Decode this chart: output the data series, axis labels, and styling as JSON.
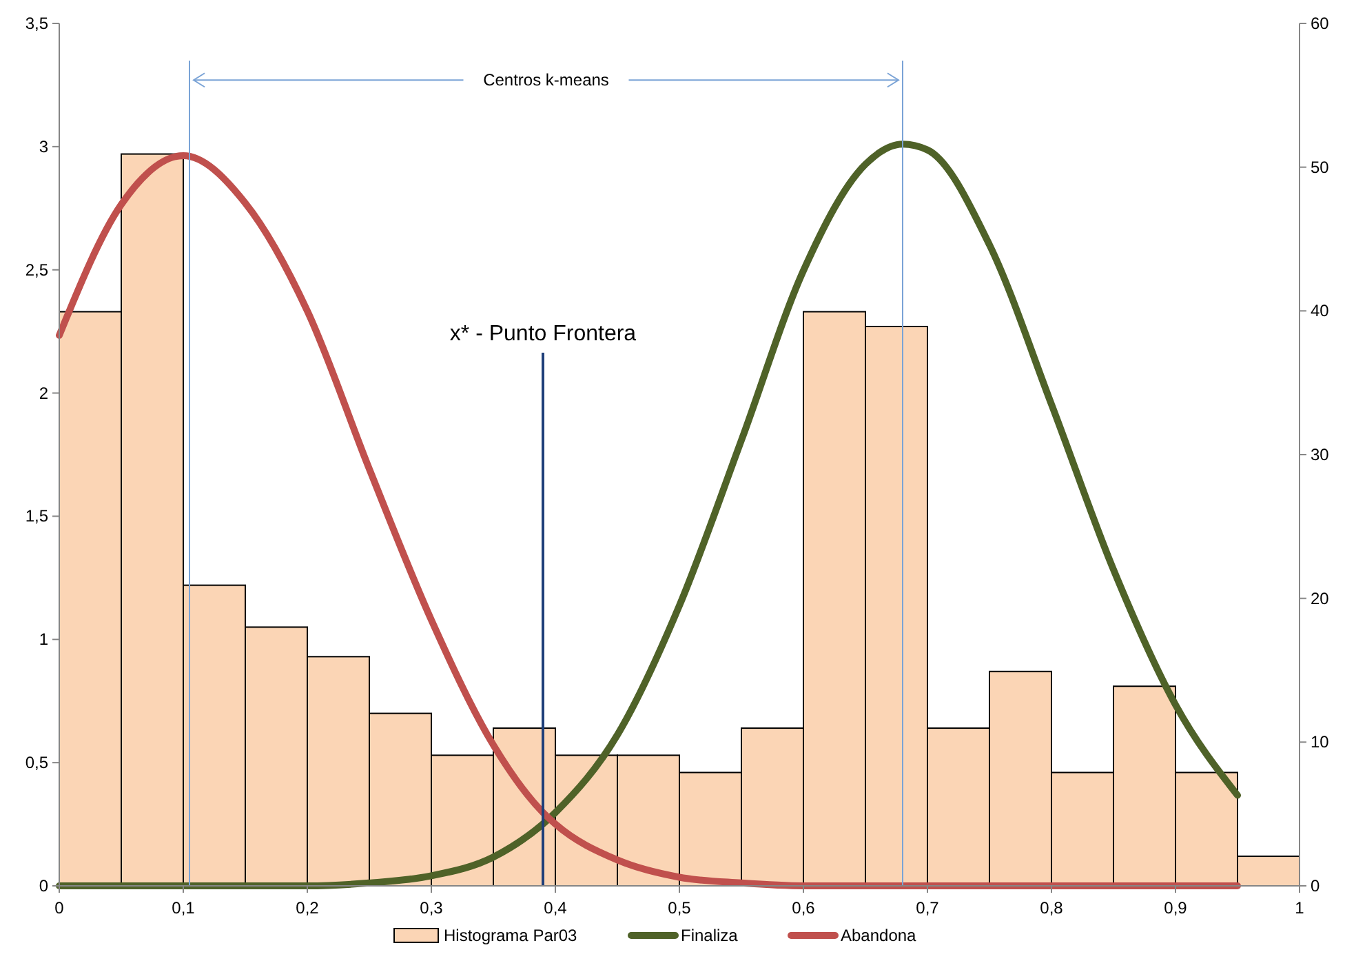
{
  "chart_data": {
    "type": "histogram",
    "bins": [
      0,
      0.05,
      0.1,
      0.15,
      0.2,
      0.25,
      0.3,
      0.35,
      0.4,
      0.45,
      0.5,
      0.55,
      0.6,
      0.65,
      0.7,
      0.75,
      0.8,
      0.85,
      0.9,
      0.95,
      1
    ],
    "series": [
      {
        "name": "Histograma Par03",
        "color": "#fbd5b5",
        "values": [
          2.33,
          2.97,
          1.22,
          1.05,
          0.93,
          0.7,
          0.53,
          0.64,
          0.53,
          0.53,
          0.46,
          0.64,
          2.33,
          2.27,
          0.64,
          0.87,
          0.46,
          0.81,
          0.46,
          0.12
        ]
      },
      {
        "type": "line",
        "name": "Finaliza",
        "color": "#4f6228",
        "axis": "y2",
        "x": [
          0,
          0.1,
          0.2,
          0.25,
          0.3,
          0.35,
          0.4,
          0.45,
          0.5,
          0.55,
          0.6,
          0.65,
          0.68,
          0.7,
          0.75,
          0.8,
          0.85,
          0.9,
          0.95
        ],
        "values": [
          0,
          0,
          0,
          0.2,
          0.7,
          2,
          5.1,
          10.5,
          19.5,
          31,
          42.8,
          50.2,
          51.6,
          51.2,
          44.6,
          33.5,
          22,
          12.6,
          6.3
        ]
      },
      {
        "type": "line",
        "name": "Abandona",
        "color": "#c0504d",
        "axis": "y2",
        "x": [
          0,
          0.05,
          0.1,
          0.15,
          0.2,
          0.25,
          0.3,
          0.35,
          0.39,
          0.4,
          0.45,
          0.5,
          0.55,
          0.6,
          0.7,
          0.8,
          0.9,
          0.95
        ],
        "values": [
          38.3,
          47.4,
          50.8,
          47.5,
          40,
          29,
          18.5,
          9.8,
          5.1,
          4.3,
          1.8,
          0.6,
          0.2,
          0,
          0,
          0,
          0,
          0
        ]
      }
    ],
    "xlim": [
      0,
      1
    ],
    "xticks": [
      0,
      {
        "value": 0.1,
        "label": "0,1"
      },
      {
        "value": 0.2,
        "label": "0,2"
      },
      {
        "value": 0.3,
        "label": "0,3"
      },
      {
        "value": 0.4,
        "label": "0,4"
      },
      {
        "value": 0.5,
        "label": "0,5"
      },
      {
        "value": 0.6,
        "label": "0,6"
      },
      {
        "value": 0.7,
        "label": "0,7"
      },
      {
        "value": 0.8,
        "label": "0,8"
      },
      {
        "value": 0.9,
        "label": "0,9"
      },
      1
    ],
    "ylim": [
      0,
      3.5
    ],
    "yticks": [
      0,
      {
        "value": 0.5,
        "label": "0,5"
      },
      1,
      {
        "value": 1.5,
        "label": "1,5"
      },
      2,
      {
        "value": 2.5,
        "label": "2,5"
      },
      3,
      {
        "value": 3.5,
        "label": "3,5"
      }
    ],
    "y2lim": [
      0,
      60
    ],
    "y2ticks": [
      0,
      10,
      20,
      30,
      40,
      50,
      60
    ],
    "ref_lines": [
      {
        "axis": "x",
        "value": 0.105,
        "color": "#7aa3d6"
      },
      {
        "axis": "x",
        "value": 0.68,
        "color": "#7aa3d6"
      },
      {
        "axis": "x",
        "value": 0.39,
        "label": "x* - Punto Frontera",
        "color": "#1f3f7a"
      }
    ],
    "annotations": [
      {
        "text": "Centros k-means",
        "x": 0.68,
        "y": 3.27
      }
    ],
    "legend": "bottom",
    "grid": false
  }
}
